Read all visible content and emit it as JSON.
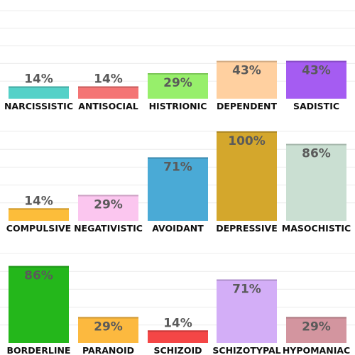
{
  "chart_data": [
    {
      "type": "bar",
      "ylim": [
        0,
        100
      ],
      "grid": true,
      "categories": [
        "NARCISSISTIC",
        "ANTISOCIAL",
        "HISTRIONIC",
        "DEPENDENT",
        "SADISTIC"
      ],
      "values": [
        14,
        14,
        29,
        43,
        43
      ],
      "value_labels": [
        "14%",
        "14%",
        "29%",
        "43%",
        "43%"
      ],
      "colors": [
        "#54d1c8",
        "#f47474",
        "#97ef6b",
        "#ffd0a0",
        "#a55cf2"
      ]
    },
    {
      "type": "bar",
      "ylim": [
        0,
        100
      ],
      "grid": true,
      "categories": [
        "COMPULSIVE",
        "NEGATIVISTIC",
        "AVOIDANT",
        "DEPRESSIVE",
        "MASOCHISTIC"
      ],
      "values": [
        14,
        29,
        71,
        100,
        86
      ],
      "value_labels": [
        "14%",
        "29%",
        "71%",
        "100%",
        "86%"
      ],
      "colors": [
        "#fcbd3a",
        "#fbc6ef",
        "#4aaad6",
        "#d4a72c",
        "#cadfd2"
      ]
    },
    {
      "type": "bar",
      "ylim": [
        0,
        100
      ],
      "grid": true,
      "categories": [
        "BORDERLINE",
        "PARANOID",
        "SCHIZOID",
        "SCHIZOTYPAL",
        "HYPOMANIAC"
      ],
      "values": [
        86,
        29,
        14,
        71,
        29
      ],
      "value_labels": [
        "86%",
        "29%",
        "14%",
        "71%",
        "29%"
      ],
      "colors": [
        "#24b71b",
        "#fcb93f",
        "#f44646",
        "#d3aef7",
        "#d3959f"
      ]
    }
  ]
}
